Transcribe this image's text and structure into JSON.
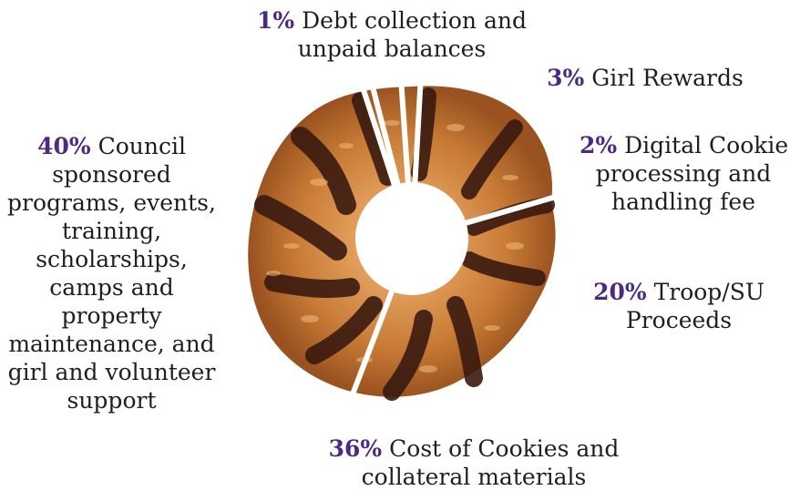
{
  "chart_data": {
    "type": "pie",
    "slices": [
      {
        "percent": "1%",
        "value": 1,
        "label": "Debt collection and unpaid balances"
      },
      {
        "percent": "3%",
        "value": 3,
        "label": "Girl Rewards"
      },
      {
        "percent": "2%",
        "value": 2,
        "label": "Digital Cookie processing and handling fee"
      },
      {
        "percent": "20%",
        "value": 20,
        "label": "Troop/SU Proceeds"
      },
      {
        "percent": "36%",
        "value": 36,
        "label": "Cost of Cookies and collateral materials"
      },
      {
        "percent": "40%",
        "value": 40,
        "label": "Council sponsored programs, events, training, scholarships, camps and property maintenance, and girl and volunteer support"
      }
    ],
    "start_angle_deg": -18
  },
  "colors": {
    "percent_text": "#4b2b82",
    "label_text": "#1f1f1f",
    "cookie_base": "#c77a35",
    "cookie_light": "#e7a865",
    "chocolate": "#3a1a10",
    "cut_lines": "#ffffff"
  }
}
